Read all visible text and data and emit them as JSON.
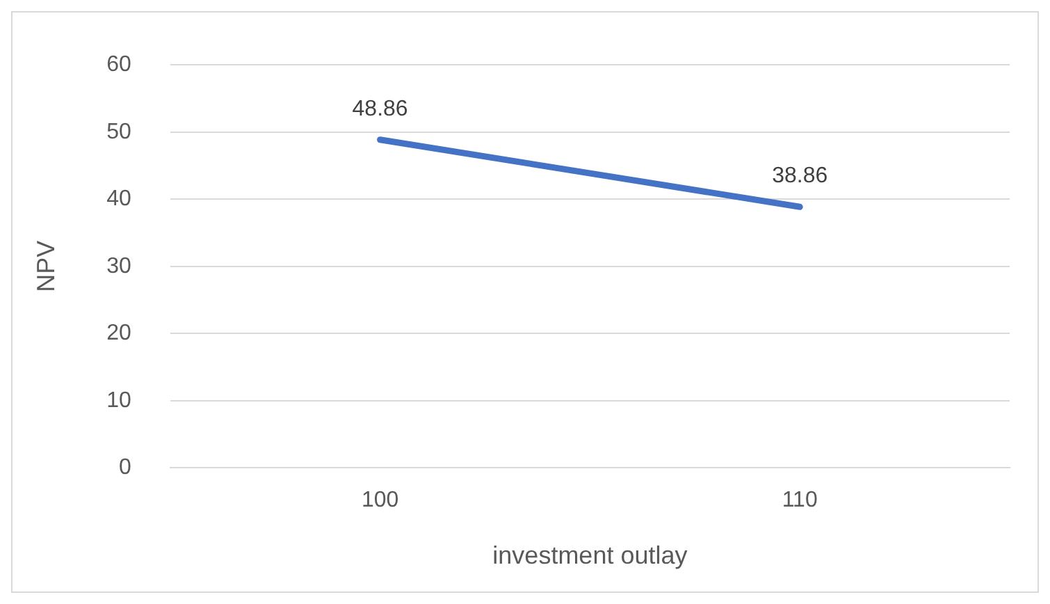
{
  "chart_data": {
    "type": "line",
    "xlabel": "investment outlay",
    "ylabel": "NPV",
    "categories": [
      "100",
      "110"
    ],
    "series": [
      {
        "color": "#4472c4",
        "values": [
          48.86,
          38.86
        ]
      }
    ],
    "ylim": [
      0,
      60
    ],
    "yticks": [
      0,
      10,
      20,
      30,
      40,
      50,
      60
    ],
    "grid": "y",
    "legend": false,
    "marker": "none",
    "data_labels": true
  }
}
